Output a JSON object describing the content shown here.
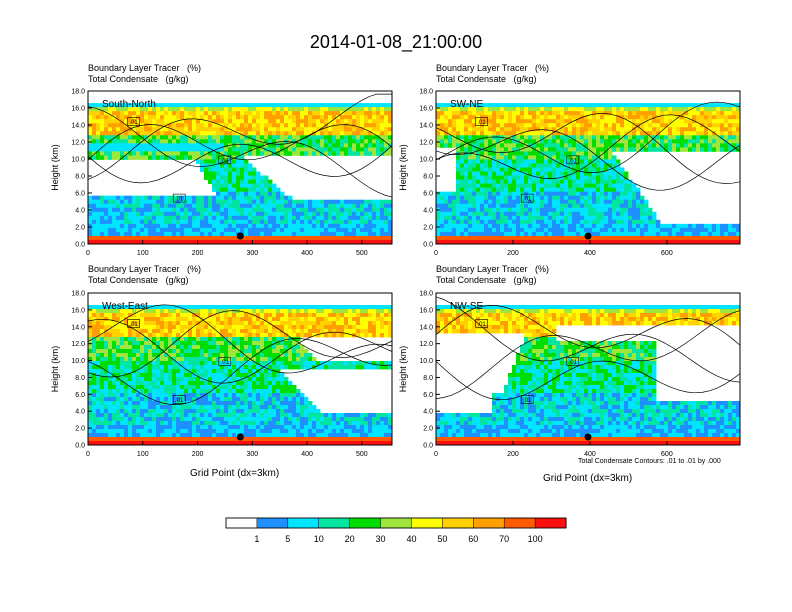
{
  "title": "2014-01-08_21:00:00",
  "field_label_1": "Boundary Layer Tracer   (%)",
  "field_label_2": "Total Condensate   (g/kg)",
  "ylabel": "Height (km)",
  "xlabel": "Grid Point (dx=3km)",
  "footnote": "Total Condensate Contours: .01 to .01 by .000",
  "contour_label": ".01",
  "colorbar": {
    "colors": [
      "#ffffff",
      "#1e90ff",
      "#00e5ff",
      "#00e6a0",
      "#00dd00",
      "#9ee63c",
      "#ffff00",
      "#ffd200",
      "#ffa000",
      "#ff5a00",
      "#ff1010"
    ],
    "labels": [
      "1",
      "5",
      "10",
      "20",
      "30",
      "40",
      "50",
      "60",
      "70",
      "100"
    ]
  },
  "chart_data": [
    {
      "type": "heatmap",
      "name": "South-North",
      "x_ticks": [
        0,
        100,
        200,
        300,
        400,
        500
      ],
      "xlim": [
        0,
        555
      ],
      "y_ticks": [
        "0.0",
        "2.0",
        "4.0",
        "6.0",
        "8.0",
        "10.0",
        "12.0",
        "14.0",
        "16.0",
        "18.0"
      ],
      "ylim": [
        0,
        18
      ],
      "marker_x": 278
    },
    {
      "type": "heatmap",
      "name": "SW-NE",
      "x_ticks": [
        0,
        200,
        400,
        600
      ],
      "xlim": [
        0,
        790
      ],
      "y_ticks": [
        "0.0",
        "2.0",
        "4.0",
        "6.0",
        "8.0",
        "10.0",
        "12.0",
        "14.0",
        "16.0",
        "18.0"
      ],
      "ylim": [
        0,
        18
      ],
      "marker_x": 395
    },
    {
      "type": "heatmap",
      "name": "West-East",
      "x_ticks": [
        0,
        100,
        200,
        300,
        400,
        500
      ],
      "xlim": [
        0,
        555
      ],
      "y_ticks": [
        "0.0",
        "2.0",
        "4.0",
        "6.0",
        "8.0",
        "10.0",
        "12.0",
        "14.0",
        "16.0",
        "18.0"
      ],
      "ylim": [
        0,
        18
      ],
      "marker_x": 278
    },
    {
      "type": "heatmap",
      "name": "NW-SE",
      "x_ticks": [
        0,
        200,
        400,
        600
      ],
      "xlim": [
        0,
        790
      ],
      "y_ticks": [
        "0.0",
        "2.0",
        "4.0",
        "6.0",
        "8.0",
        "10.0",
        "12.0",
        "14.0",
        "16.0",
        "18.0"
      ],
      "ylim": [
        0,
        18
      ],
      "marker_x": 395
    }
  ]
}
